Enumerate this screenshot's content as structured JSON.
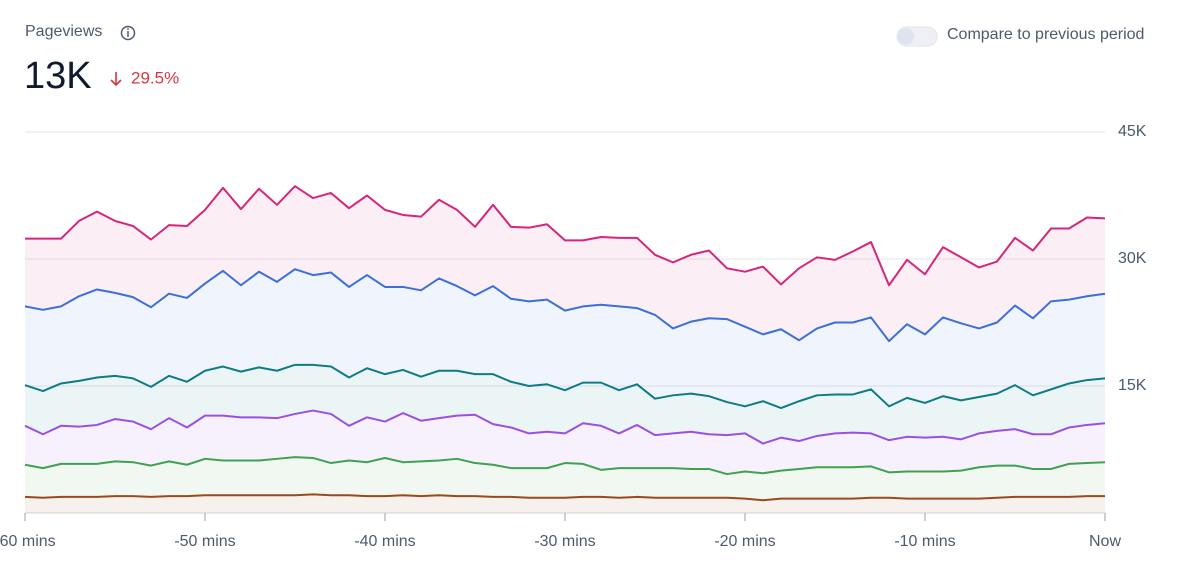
{
  "chart_data": {
    "type": "stacked-area",
    "title": "Pageviews",
    "summary": {
      "value": "13K",
      "change": "29.5%"
    },
    "compare_toggle": {
      "label": "Compare to previous period",
      "checked": false
    },
    "x": [
      -60,
      -59,
      -58,
      -57,
      -56,
      -55,
      -54,
      -53,
      -52,
      -51,
      -50,
      -49,
      -48,
      -47,
      -46,
      -45,
      -44,
      -43,
      -42,
      -41,
      -40,
      -39,
      -38,
      -37,
      -36,
      -35,
      -34,
      -33,
      -32,
      -31,
      -30,
      -29,
      -28,
      -27,
      -26,
      -25,
      -24,
      -23,
      -22,
      -21,
      -20,
      -19,
      -18,
      -17,
      -16,
      -15,
      -14,
      -13,
      -12,
      -11,
      -10,
      -9,
      -8,
      -7,
      -6,
      -5,
      -4,
      -3,
      -2,
      -1,
      0
    ],
    "xlim": [
      -60,
      0
    ],
    "xticks": [
      {
        "value": -60,
        "label": "-60 mins"
      },
      {
        "value": -50,
        "label": "-50 mins"
      },
      {
        "value": -40,
        "label": "-40 mins"
      },
      {
        "value": -30,
        "label": "-30 mins"
      },
      {
        "value": -20,
        "label": "-20 mins"
      },
      {
        "value": -10,
        "label": "-10 mins"
      },
      {
        "value": 0,
        "label": "Now"
      }
    ],
    "ylim": [
      0,
      45000
    ],
    "yticks": [
      {
        "value": 15000,
        "label": "15K"
      },
      {
        "value": 30000,
        "label": "30K"
      },
      {
        "value": 45000,
        "label": "45K"
      }
    ],
    "grid": true,
    "series": [
      {
        "color": "#9a4a1c",
        "values": [
          1900,
          1800,
          1900,
          1900,
          1900,
          2000,
          2000,
          1900,
          2000,
          2000,
          2100,
          2100,
          2100,
          2100,
          2100,
          2100,
          2200,
          2100,
          2100,
          2000,
          2000,
          2100,
          2000,
          2100,
          2000,
          2000,
          1900,
          1900,
          1800,
          1800,
          1800,
          1900,
          1900,
          1800,
          1900,
          1800,
          1800,
          1800,
          1800,
          1800,
          1700,
          1500,
          1700,
          1700,
          1700,
          1700,
          1700,
          1800,
          1800,
          1700,
          1700,
          1700,
          1700,
          1700,
          1800,
          1900,
          1900,
          1900,
          1900,
          2000,
          2000
        ]
      },
      {
        "color": "#3ea24f",
        "values": [
          3800,
          3500,
          3900,
          3900,
          3900,
          4100,
          4000,
          3700,
          4100,
          3700,
          4300,
          4100,
          4100,
          4100,
          4300,
          4500,
          4300,
          3800,
          4100,
          4000,
          4500,
          3900,
          4100,
          4100,
          4400,
          3900,
          3800,
          3400,
          3500,
          3500,
          4100,
          3900,
          3200,
          3500,
          3400,
          3500,
          3500,
          3400,
          3400,
          2800,
          3200,
          3200,
          3300,
          3500,
          3700,
          3700,
          3700,
          3700,
          3000,
          3200,
          3200,
          3200,
          3300,
          3700,
          3800,
          3700,
          3300,
          3300,
          3900,
          3900,
          4000
        ]
      },
      {
        "color": "#9b4fe3",
        "values": [
          4600,
          4000,
          4500,
          4400,
          4600,
          5000,
          4800,
          4300,
          5100,
          4400,
          5100,
          5300,
          5100,
          5100,
          4800,
          5100,
          5600,
          5800,
          4100,
          5300,
          4300,
          5800,
          4800,
          5000,
          5100,
          5700,
          4800,
          4800,
          4100,
          4300,
          3500,
          4800,
          5200,
          4100,
          5100,
          3900,
          4100,
          4400,
          4100,
          4600,
          4500,
          3500,
          3900,
          3300,
          3700,
          4000,
          4100,
          3900,
          3800,
          4100,
          4000,
          4100,
          3700,
          4000,
          4100,
          4300,
          4100,
          4100,
          4300,
          4500,
          4600
        ]
      },
      {
        "color": "#0f7b85",
        "values": [
          4800,
          5100,
          5000,
          5400,
          5600,
          5100,
          5100,
          5000,
          5000,
          5400,
          5300,
          5800,
          5400,
          5900,
          5600,
          5800,
          5400,
          5600,
          5700,
          5800,
          5600,
          5100,
          5200,
          5600,
          5300,
          4800,
          5900,
          5400,
          5600,
          5600,
          5100,
          4800,
          5100,
          5100,
          4800,
          4300,
          4500,
          4500,
          4500,
          3900,
          3200,
          5000,
          3500,
          4700,
          4800,
          4600,
          4500,
          5200,
          4000,
          4600,
          4100,
          4800,
          4600,
          4300,
          4400,
          5200,
          4600,
          5300,
          5200,
          5300,
          5300
        ]
      },
      {
        "color": "#3b6fd9",
        "values": [
          9300,
          9600,
          9100,
          10000,
          10400,
          9800,
          9600,
          9400,
          9700,
          9900,
          10300,
          11300,
          10200,
          11300,
          10500,
          11300,
          10600,
          11100,
          10700,
          11000,
          10300,
          9800,
          10200,
          10900,
          10000,
          9300,
          10400,
          9800,
          10000,
          10000,
          9400,
          9000,
          9200,
          9900,
          9000,
          9900,
          7900,
          8500,
          9200,
          9800,
          9400,
          7900,
          9300,
          7200,
          7900,
          8500,
          8500,
          8500,
          7700,
          8700,
          8100,
          9300,
          9100,
          8100,
          8400,
          9400,
          9100,
          10400,
          9900,
          9900,
          10000
        ]
      },
      {
        "color": "#d6257a",
        "values": [
          8000,
          8400,
          8000,
          8900,
          9200,
          8500,
          8400,
          8000,
          8100,
          8500,
          8700,
          9800,
          9000,
          9800,
          9100,
          9800,
          9100,
          9400,
          9300,
          9400,
          9100,
          8500,
          8700,
          9300,
          9000,
          8100,
          9600,
          8500,
          8700,
          8900,
          8300,
          7800,
          8000,
          8100,
          8300,
          7100,
          7800,
          7900,
          8000,
          6000,
          6500,
          8000,
          5300,
          8500,
          8400,
          7400,
          8400,
          8900,
          6600,
          7600,
          7100,
          8300,
          7800,
          7200,
          7200,
          8000,
          8000,
          8600,
          8400,
          9300,
          8900
        ]
      }
    ]
  }
}
